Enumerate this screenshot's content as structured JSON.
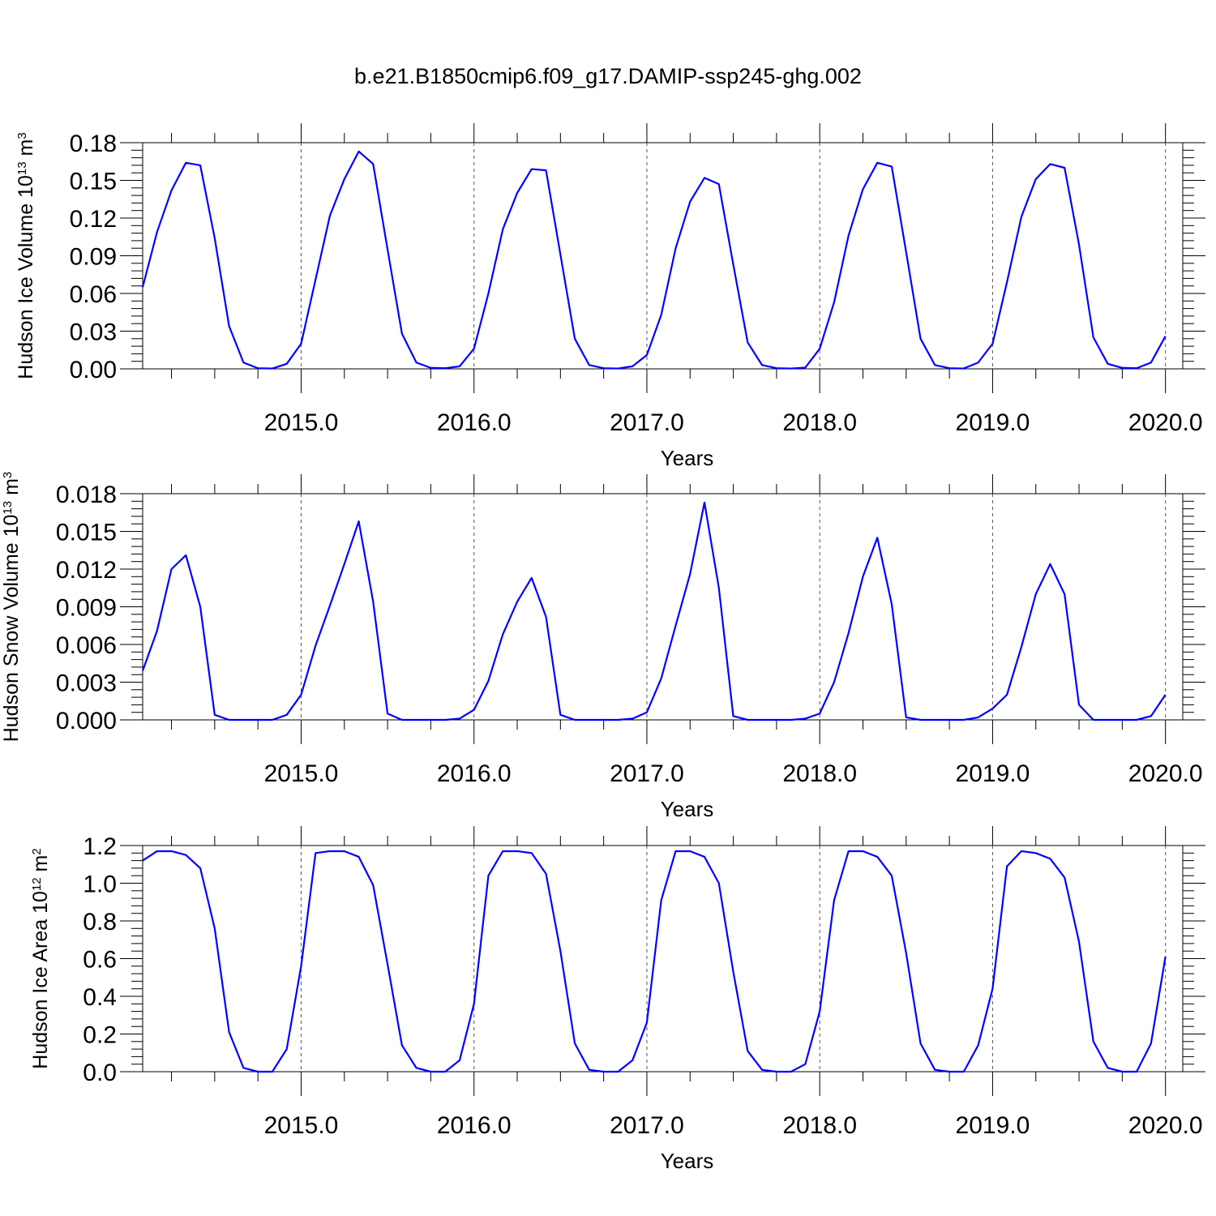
{
  "figure": {
    "title": "b.e21.B1850cmip6.f09_g17.DAMIP-ssp245-ghg.002",
    "line_color": "#0000ff"
  },
  "chart_data": [
    {
      "type": "line",
      "xlabel": "Years",
      "ylabel": {
        "base": "Hudson Ice Volume 10",
        "exp": "13",
        "unit": " m",
        "unit_exp": "3"
      },
      "x_ticks": [
        2015,
        2016,
        2017,
        2018,
        2019,
        2020
      ],
      "x_tick_labels": [
        "2015.0",
        "2016.0",
        "2017.0",
        "2018.0",
        "2019.0",
        "2020.0"
      ],
      "xlim": [
        2014.0833,
        2020.1
      ],
      "ylim": [
        0,
        0.18
      ],
      "y_ticks": [
        0,
        0.03,
        0.06,
        0.09,
        0.12,
        0.15,
        0.18
      ],
      "y_tick_labels": [
        "0.00",
        "0.03",
        "0.06",
        "0.09",
        "0.12",
        "0.15",
        "0.18"
      ],
      "y_minor_step": 0.006,
      "grid": "vertical dashed at year marks",
      "series": [
        {
          "x_start": 2014.0833,
          "x_step": 0.08333,
          "values": [
            0.065,
            0.109,
            0.142,
            0.164,
            0.162,
            0.104,
            0.034,
            0.005,
            0.0005,
            0.0003,
            0.004,
            0.02,
            0.071,
            0.122,
            0.151,
            0.173,
            0.163,
            0.095,
            0.028,
            0.005,
            0.0008,
            0.0005,
            0.002,
            0.016,
            0.06,
            0.111,
            0.14,
            0.159,
            0.158,
            0.091,
            0.024,
            0.003,
            0.0005,
            0.0003,
            0.002,
            0.011,
            0.043,
            0.096,
            0.133,
            0.152,
            0.147,
            0.083,
            0.021,
            0.003,
            0.0005,
            0.0003,
            0.001,
            0.016,
            0.053,
            0.106,
            0.143,
            0.164,
            0.161,
            0.093,
            0.024,
            0.003,
            0.0005,
            0.0003,
            0.005,
            0.02,
            0.069,
            0.121,
            0.151,
            0.163,
            0.16,
            0.099,
            0.025,
            0.004,
            0.0008,
            0.0005,
            0.005,
            0.026
          ]
        }
      ]
    },
    {
      "type": "line",
      "xlabel": "Years",
      "ylabel": {
        "base": "Hudson Snow Volume 10",
        "exp": "13",
        "unit": " m",
        "unit_exp": "3"
      },
      "x_ticks": [
        2015,
        2016,
        2017,
        2018,
        2019,
        2020
      ],
      "x_tick_labels": [
        "2015.0",
        "2016.0",
        "2017.0",
        "2018.0",
        "2019.0",
        "2020.0"
      ],
      "xlim": [
        2014.0833,
        2020.1
      ],
      "ylim": [
        0,
        0.018
      ],
      "y_ticks": [
        0,
        0.003,
        0.006,
        0.009,
        0.012,
        0.015,
        0.018
      ],
      "y_tick_labels": [
        "0.000",
        "0.003",
        "0.006",
        "0.009",
        "0.012",
        "0.015",
        "0.018"
      ],
      "y_minor_step": 0.0006,
      "grid": "vertical dashed at year marks",
      "series": [
        {
          "x_start": 2014.0833,
          "x_step": 0.08333,
          "values": [
            0.0039,
            0.0071,
            0.012,
            0.0131,
            0.009,
            0.0004,
            0.0,
            0.0,
            0.0,
            0.0,
            0.0004,
            0.002,
            0.0059,
            0.0091,
            0.0124,
            0.0158,
            0.0094,
            0.0005,
            0.0,
            0.0,
            0.0,
            0.0,
            0.0001,
            0.0008,
            0.0031,
            0.0068,
            0.0094,
            0.0113,
            0.0082,
            0.0004,
            0.0,
            0.0,
            0.0,
            0.0,
            0.0001,
            0.0006,
            0.0033,
            0.0075,
            0.0116,
            0.0173,
            0.0105,
            0.0003,
            0.0,
            0.0,
            0.0,
            0.0,
            0.0001,
            0.0005,
            0.003,
            0.0069,
            0.0114,
            0.0145,
            0.0092,
            0.0002,
            0.0,
            0.0,
            0.0,
            0.0,
            0.0002,
            0.0009,
            0.002,
            0.0058,
            0.01,
            0.0124,
            0.01,
            0.0012,
            0.0,
            0.0,
            0.0,
            0.0,
            0.0003,
            0.002
          ]
        }
      ]
    },
    {
      "type": "line",
      "xlabel": "Years",
      "ylabel": {
        "base": "Hudson Ice Area 10",
        "exp": "12",
        "unit": " m",
        "unit_exp": "2"
      },
      "x_ticks": [
        2015,
        2016,
        2017,
        2018,
        2019,
        2020
      ],
      "x_tick_labels": [
        "2015.0",
        "2016.0",
        "2017.0",
        "2018.0",
        "2019.0",
        "2020.0"
      ],
      "xlim": [
        2014.0833,
        2020.1
      ],
      "ylim": [
        0,
        1.2
      ],
      "y_ticks": [
        0,
        0.2,
        0.4,
        0.6,
        0.8,
        1.0,
        1.2
      ],
      "y_tick_labels": [
        "0.0",
        "0.2",
        "0.4",
        "0.6",
        "0.8",
        "1.0",
        "1.2"
      ],
      "y_minor_step": 0.04,
      "grid": "vertical dashed at year marks",
      "series": [
        {
          "x_start": 2014.0833,
          "x_step": 0.08333,
          "values": [
            1.12,
            1.17,
            1.17,
            1.15,
            1.08,
            0.76,
            0.21,
            0.02,
            0.0,
            0.0,
            0.12,
            0.56,
            1.16,
            1.17,
            1.17,
            1.14,
            0.99,
            0.57,
            0.14,
            0.02,
            0.0,
            0.0,
            0.06,
            0.36,
            1.04,
            1.17,
            1.17,
            1.16,
            1.05,
            0.64,
            0.15,
            0.01,
            0.0,
            0.0,
            0.06,
            0.26,
            0.91,
            1.17,
            1.17,
            1.14,
            1.0,
            0.53,
            0.11,
            0.01,
            0.0,
            0.0,
            0.04,
            0.32,
            0.91,
            1.17,
            1.17,
            1.14,
            1.04,
            0.63,
            0.15,
            0.01,
            0.0,
            0.0,
            0.14,
            0.44,
            1.09,
            1.17,
            1.16,
            1.13,
            1.03,
            0.69,
            0.16,
            0.02,
            0.0,
            0.0,
            0.15,
            0.61
          ]
        }
      ]
    }
  ]
}
